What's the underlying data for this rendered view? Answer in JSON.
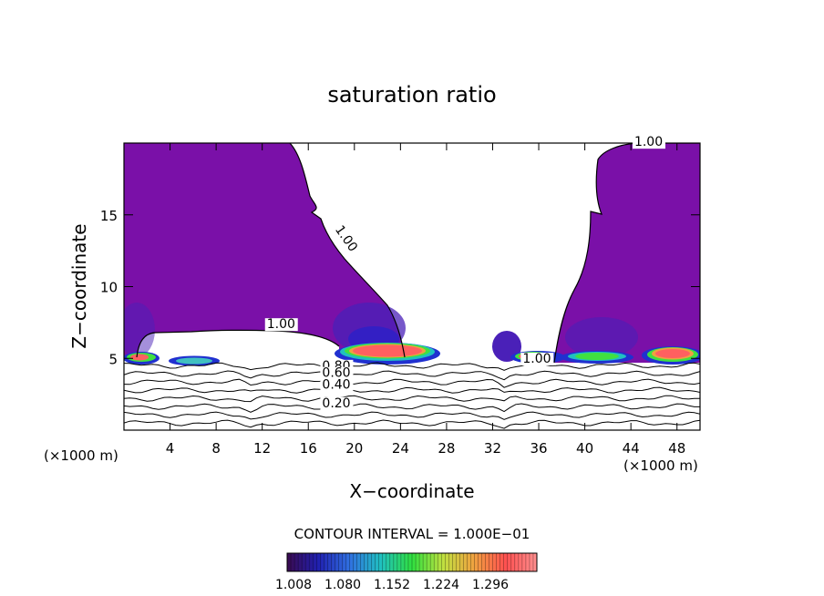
{
  "chart_data": {
    "type": "heatmap",
    "title": "saturation ratio",
    "xlabel": "X−coordinate",
    "ylabel": "Z−coordinate",
    "x_unit_left": "(×1000 m)",
    "x_unit_right": "(×1000 m)",
    "xlim": [
      0,
      50
    ],
    "ylim": [
      0,
      20
    ],
    "x_ticks": [
      4,
      8,
      12,
      16,
      20,
      24,
      28,
      32,
      36,
      40,
      44,
      48
    ],
    "y_ticks": [
      5,
      10,
      15
    ],
    "x_tick_labels": [
      "4",
      "8",
      "12",
      "16",
      "20",
      "24",
      "28",
      "32",
      "36",
      "40",
      "44",
      "48"
    ],
    "y_tick_labels": [
      "5",
      "10",
      "15"
    ],
    "contour_interval_text": "CONTOUR INTERVAL = 1.000E−01",
    "contour_labels": [
      {
        "text": "1.00",
        "x": 44.3,
        "y": 19.8
      },
      {
        "text": "1.00",
        "x": 18.3,
        "y": 14.0,
        "rotate": 55
      },
      {
        "text": "1.00",
        "x": 12.4,
        "y": 7.1
      },
      {
        "text": "1.00",
        "x": 34.6,
        "y": 4.7
      },
      {
        "text": "0.80",
        "x": 17.2,
        "y": 4.2
      },
      {
        "text": "0.60",
        "x": 17.2,
        "y": 3.7
      },
      {
        "text": "0.40",
        "x": 17.2,
        "y": 2.9
      },
      {
        "text": "0.20",
        "x": 17.2,
        "y": 1.6
      }
    ],
    "subsaturated_contours": [
      0.2,
      0.3,
      0.4,
      0.5,
      0.6,
      0.7,
      0.8,
      0.9
    ],
    "colorbar": {
      "labels": [
        "1.008",
        "1.080",
        "1.152",
        "1.224",
        "1.296"
      ],
      "colors": [
        "#3a0a50",
        "#2020b0",
        "#3070e0",
        "#20c0c0",
        "#30e040",
        "#c0e040",
        "#f0a040",
        "#ff5050",
        "#ff9090"
      ]
    },
    "colors": {
      "supersat_base": "#7a10a8",
      "deep_blue": "#3020c0",
      "core_red": "#ff6060",
      "background": "#ffffff"
    }
  }
}
